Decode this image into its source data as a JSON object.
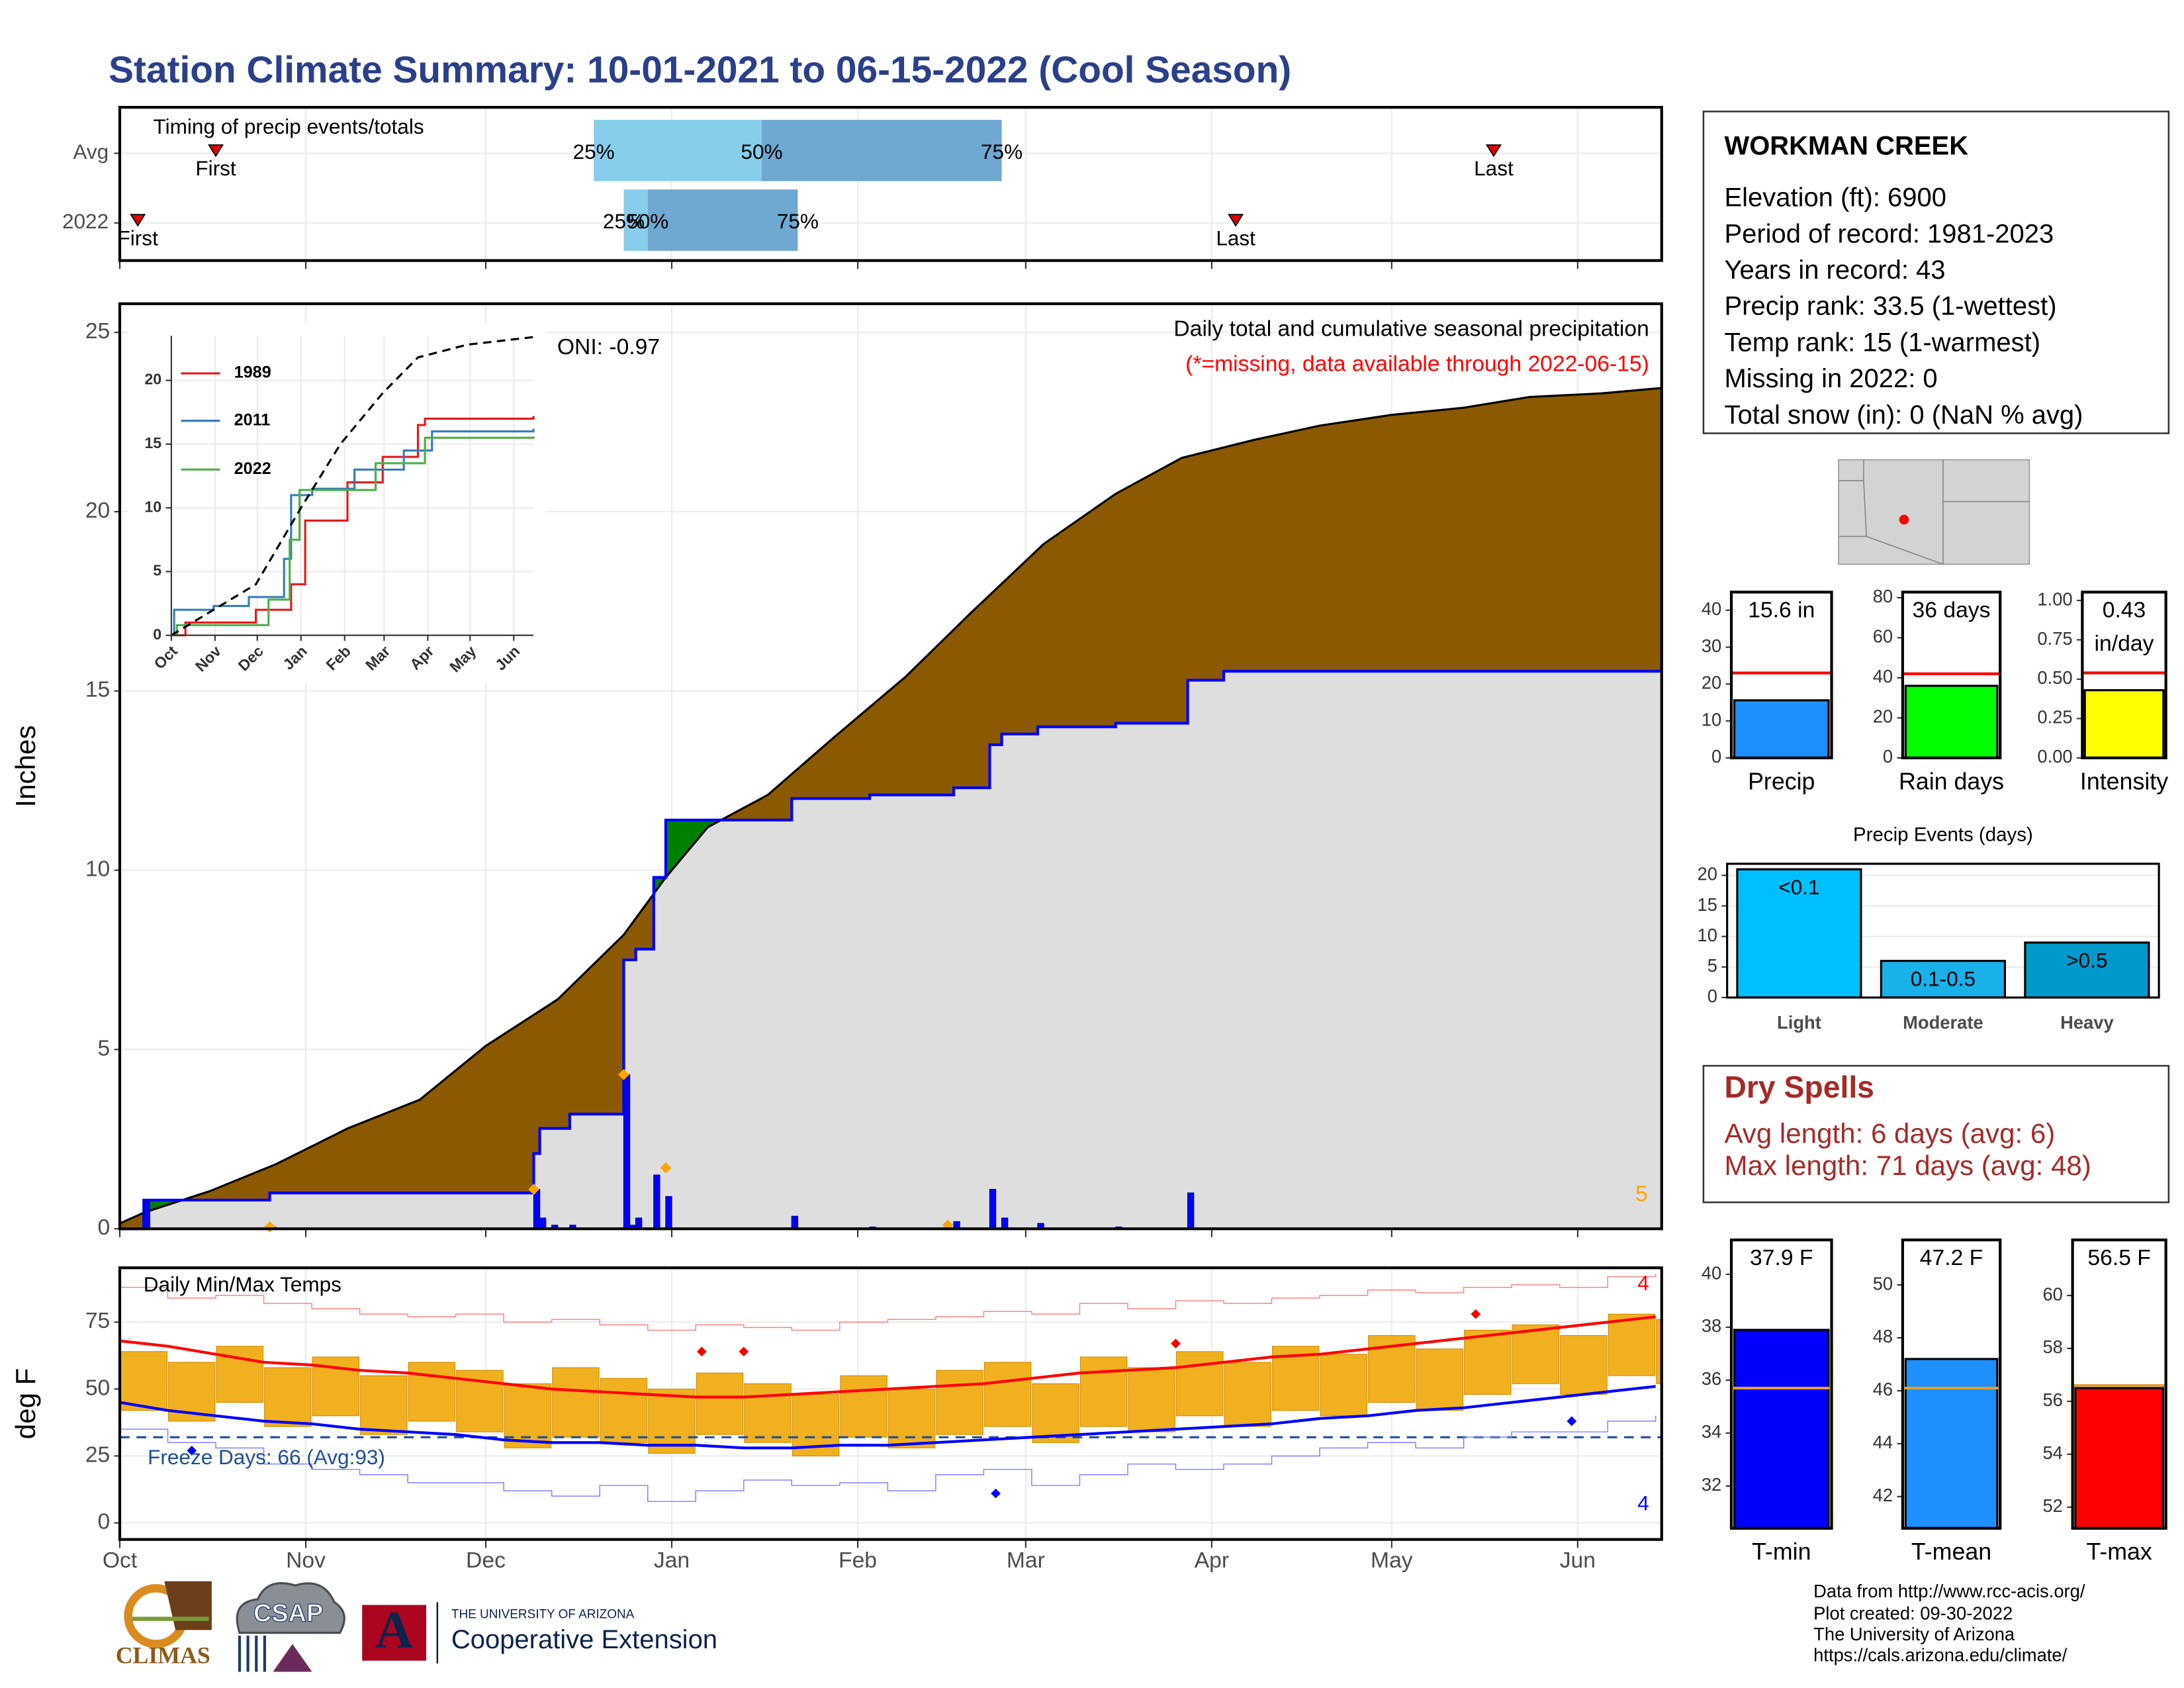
{
  "title": "Station Climate Summary: 10-01-2021 to 06-15-2022 (Cool Season)",
  "station": {
    "name": "WORKMAN CREEK",
    "lines": [
      "Elevation (ft): 6900",
      "Period of record: 1981-2023",
      "Years in record: 43",
      "Precip rank: 33.5 (1-wettest)",
      "Temp rank: 15 (1-warmest)",
      "Missing in 2022: 0",
      "Total snow (in): 0 (NaN % avg)"
    ]
  },
  "dry_spells": {
    "title": "Dry Spells",
    "lines": [
      "Avg length: 6 days (avg: 6)",
      "Max length: 71 days (avg: 48)"
    ]
  },
  "footer": [
    "Data from http://www.rcc-acis.org/",
    "Plot created: 09-30-2022",
    "The University of Arizona",
    "https://cals.arizona.edu/climate/"
  ],
  "logos": {
    "climas": "CLIMAS",
    "csap": "CSAP",
    "ua_mark": "A",
    "ua": "THE UNIVERSITY OF ARIZONA",
    "extension": "Cooperative Extension"
  },
  "chart_data": [
    {
      "type": "timing",
      "title": "Timing of precip events/totals",
      "xlim": [
        0,
        257
      ],
      "xticks": [
        0,
        31,
        61,
        92,
        123,
        151,
        182,
        212,
        243
      ],
      "grid": true,
      "rows": [
        {
          "name": "Avg",
          "first": 16,
          "last": 229,
          "quantiles": [
            79,
            107,
            147
          ]
        },
        {
          "name": "2022",
          "first": 3,
          "last": 186,
          "quantiles": [
            84,
            88,
            113
          ]
        }
      ],
      "quantile_labels": [
        "25%",
        "50%",
        "75%"
      ],
      "first_label": "First",
      "last_label": "Last",
      "colors": [
        "#87ceeb",
        "#6fa8d0"
      ],
      "marker_color": "#e00000"
    },
    {
      "type": "area",
      "y_label": "Inches",
      "annotations": [
        {
          "text": "Daily total and cumulative seasonal precipitation",
          "color": "#000000"
        },
        {
          "text": "(*=missing, data available through 2022-06-15)",
          "color": "#ff0000"
        },
        {
          "text": "ONI: -0.97",
          "color": "#000000"
        },
        {
          "text": "5",
          "color": "#ffa500"
        }
      ],
      "xlim": [
        0,
        257
      ],
      "xticks": [
        0,
        31,
        61,
        92,
        123,
        151,
        182,
        212,
        243
      ],
      "ylim": [
        0,
        25.8
      ],
      "yticks": [
        0,
        5,
        10,
        15,
        20,
        25
      ],
      "grid": true,
      "average": {
        "color": "#8b5a00",
        "x": [
          0,
          4,
          15,
          26,
          38,
          50,
          61,
          73,
          84,
          91,
          98,
          108,
          119,
          131,
          142,
          154,
          166,
          177,
          189,
          200,
          212,
          224,
          235,
          247,
          257
        ],
        "values": [
          0.15,
          0.45,
          1.05,
          1.8,
          2.8,
          3.6,
          5.1,
          6.4,
          8.2,
          9.8,
          11.2,
          12.1,
          13.7,
          15.4,
          17.2,
          19.1,
          20.5,
          21.5,
          22.0,
          22.4,
          22.7,
          22.9,
          23.2,
          23.3,
          23.45
        ]
      },
      "current": {
        "color": "#0000ff",
        "fill": "#dedede",
        "above_color": "#008000",
        "x": [
          0,
          4,
          25,
          69,
          70,
          75,
          84,
          86,
          89,
          91,
          112,
          125,
          139,
          145,
          147,
          153,
          166,
          178,
          184,
          257
        ],
        "values": [
          0,
          0.8,
          1.0,
          2.1,
          2.8,
          3.2,
          7.5,
          7.8,
          9.8,
          11.4,
          12.0,
          12.1,
          12.3,
          13.5,
          13.8,
          14.0,
          14.1,
          15.3,
          15.55,
          15.55
        ]
      },
      "daily": {
        "color": "#0000ff",
        "x": [
          4,
          25,
          69,
          70,
          72,
          75,
          84,
          85,
          86,
          89,
          91,
          112,
          125,
          139,
          145,
          147,
          153,
          166,
          178
        ],
        "values": [
          0.8,
          0.05,
          1.1,
          0.3,
          0.1,
          0.1,
          4.3,
          0.1,
          0.3,
          1.5,
          0.9,
          0.35,
          0.05,
          0.2,
          1.1,
          0.3,
          0.15,
          0.05,
          1.0
        ]
      },
      "markers": {
        "color": "#ffa500",
        "x": [
          25,
          69,
          84,
          91,
          138
        ],
        "values": [
          0.05,
          1.1,
          4.3,
          1.7,
          0.1
        ]
      }
    },
    {
      "type": "line",
      "xlim": [
        0,
        257
      ],
      "xticks": [
        {
          "value": 0,
          "label": "Oct"
        },
        {
          "value": 31,
          "label": "Nov"
        },
        {
          "value": 61,
          "label": "Dec"
        },
        {
          "value": 92,
          "label": "Jan"
        },
        {
          "value": 123,
          "label": "Feb"
        },
        {
          "value": 151,
          "label": "Mar"
        },
        {
          "value": 182,
          "label": "Apr"
        },
        {
          "value": 212,
          "label": "May"
        },
        {
          "value": 243,
          "label": "Jun"
        }
      ],
      "ylim": [
        0,
        23.5
      ],
      "yticks": [
        0,
        5,
        10,
        15,
        20
      ],
      "grid": true,
      "series": [
        {
          "name": "1989",
          "color": "#e41a1c",
          "x": [
            0,
            10,
            60,
            85,
            95,
            125,
            150,
            175,
            180,
            257
          ],
          "values": [
            0,
            1,
            2,
            4,
            9,
            12,
            14,
            16.5,
            17,
            17.2
          ]
        },
        {
          "name": "2011",
          "color": "#377eb8",
          "x": [
            0,
            2,
            30,
            55,
            80,
            85,
            100,
            130,
            165,
            185,
            257
          ],
          "values": [
            0,
            2,
            2.3,
            3,
            6,
            11,
            11.5,
            13,
            14.5,
            16,
            16.2
          ]
        },
        {
          "name": "2022",
          "color": "#4daf4a",
          "x": [
            0,
            4,
            69,
            84,
            91,
            145,
            180,
            257
          ],
          "values": [
            0,
            0.8,
            2.8,
            7.5,
            11.4,
            13.5,
            15.5,
            15.6
          ]
        },
        {
          "color": "#000000",
          "dash": true,
          "x": [
            0,
            30,
            60,
            92,
            120,
            150,
            175,
            210,
            257
          ],
          "values": [
            0,
            2,
            4,
            10,
            15,
            19,
            21.8,
            22.8,
            23.4
          ]
        }
      ]
    },
    {
      "type": "temperature",
      "title": "Daily Min/Max Temps",
      "y_label": "deg F",
      "annotations": [
        {
          "text": "Freeze Days: 66 (Avg:93)",
          "color": "#1f4e99"
        },
        {
          "text": "4",
          "color": "#ff0000"
        },
        {
          "text": "4",
          "color": "#0000ff"
        }
      ],
      "xlim": [
        0,
        257
      ],
      "xticks": [
        {
          "value": 0,
          "label": "Oct"
        },
        {
          "value": 31,
          "label": "Nov"
        },
        {
          "value": 61,
          "label": "Dec"
        },
        {
          "value": 92,
          "label": "Jan"
        },
        {
          "value": 123,
          "label": "Feb"
        },
        {
          "value": 151,
          "label": "Mar"
        },
        {
          "value": 182,
          "label": "Apr"
        },
        {
          "value": 212,
          "label": "May"
        },
        {
          "value": 243,
          "label": "Jun"
        }
      ],
      "ylim": [
        -6.2,
        95.3
      ],
      "yticks": [
        0,
        25,
        50,
        75
      ],
      "grid": true,
      "freeze_line": {
        "value": 32,
        "color": "#1f4e99"
      },
      "x": [
        0,
        8,
        16,
        24,
        32,
        40,
        48,
        56,
        64,
        72,
        80,
        88,
        96,
        104,
        112,
        120,
        128,
        136,
        144,
        152,
        160,
        168,
        176,
        184,
        192,
        200,
        208,
        216,
        224,
        232,
        240,
        248,
        256
      ],
      "range": {
        "color": "#f0b020",
        "high": [
          64,
          60,
          66,
          58,
          62,
          55,
          60,
          57,
          52,
          58,
          54,
          50,
          56,
          52,
          48,
          55,
          50,
          57,
          60,
          52,
          62,
          58,
          64,
          60,
          66,
          63,
          70,
          65,
          72,
          74,
          70,
          78,
          76
        ],
        "low": [
          42,
          38,
          45,
          36,
          40,
          33,
          38,
          34,
          28,
          32,
          30,
          26,
          33,
          30,
          25,
          32,
          28,
          33,
          36,
          30,
          36,
          34,
          40,
          36,
          42,
          40,
          45,
          42,
          48,
          52,
          48,
          55,
          52
        ]
      },
      "series": [
        {
          "color": "#ff0000",
          "width": 2,
          "values": [
            68,
            66,
            63,
            60,
            59,
            57,
            56,
            54,
            52,
            50,
            49,
            48,
            47,
            47,
            48,
            49,
            50,
            51,
            52,
            54,
            56,
            57,
            58,
            60,
            62,
            63,
            65,
            67,
            69,
            71,
            73,
            75,
            77
          ]
        },
        {
          "color": "#0000ff",
          "width": 2,
          "values": [
            45,
            42,
            40,
            38,
            37,
            35,
            34,
            33,
            31,
            30,
            30,
            29,
            29,
            28,
            28,
            29,
            29,
            30,
            31,
            32,
            33,
            34,
            35,
            36,
            37,
            39,
            40,
            42,
            43,
            45,
            47,
            49,
            51
          ]
        },
        {
          "color": "#ff8080",
          "width": 0.7,
          "values": [
            88,
            84,
            85,
            82,
            80,
            78,
            77,
            78,
            75,
            76,
            74,
            72,
            74,
            73,
            72,
            75,
            76,
            77,
            79,
            78,
            82,
            80,
            83,
            82,
            84,
            85,
            87,
            86,
            88,
            89,
            88,
            92,
            93
          ]
        },
        {
          "color": "#8080ff",
          "width": 0.7,
          "values": [
            35,
            30,
            28,
            22,
            20,
            18,
            15,
            15,
            12,
            10,
            14,
            8,
            12,
            16,
            14,
            15,
            12,
            18,
            20,
            14,
            18,
            22,
            20,
            22,
            25,
            28,
            30,
            28,
            32,
            34,
            34,
            38,
            40
          ]
        }
      ],
      "markers": [
        {
          "color": "#ff0000",
          "x": [
            97,
            104,
            176,
            226
          ],
          "values": [
            64,
            64,
            67,
            78
          ]
        },
        {
          "color": "#0000ff",
          "x": [
            12,
            146,
            242
          ],
          "values": [
            27,
            11,
            38
          ]
        }
      ]
    },
    {
      "type": "bar",
      "categories": [
        "Precip"
      ],
      "values": [
        15.6
      ],
      "value_labels": [
        "15.6 in"
      ],
      "color": "#1e90ff",
      "average": {
        "value": 23,
        "color": "#ff0000"
      },
      "ylim": [
        0,
        44.9
      ],
      "yticks": [
        0,
        10,
        20,
        30,
        40
      ]
    },
    {
      "type": "bar",
      "categories": [
        "Rain days"
      ],
      "values": [
        36
      ],
      "value_labels": [
        "36 days"
      ],
      "color": "#00ff00",
      "average": {
        "value": 42,
        "color": "#ff0000"
      },
      "ylim": [
        0,
        82.8
      ],
      "yticks": [
        0,
        20,
        40,
        60,
        80
      ]
    },
    {
      "type": "bar",
      "categories": [
        "Intensity"
      ],
      "values": [
        0.43
      ],
      "value_labels": [
        "0.43 in/day"
      ],
      "color": "#ffff00",
      "average": {
        "value": 0.54,
        "color": "#ff0000"
      },
      "ylim": [
        0,
        1.053
      ],
      "yticks": [
        {
          "value": 0,
          "label": "0.00"
        },
        0.25,
        {
          "value": 0.5,
          "label": "0.50"
        },
        0.75,
        {
          "value": 1,
          "label": "1.00"
        }
      ]
    },
    {
      "type": "bar",
      "title": "Precip Events (days)",
      "categories": [
        "Light",
        "Moderate",
        "Heavy"
      ],
      "values": [
        21,
        6,
        9
      ],
      "value_labels": [
        "<0.1",
        "0.1-0.5",
        ">0.5"
      ],
      "colors": [
        "#00bfff",
        "#1ab0e8",
        "#0099cc"
      ],
      "ylim": [
        0,
        21.9
      ],
      "yticks": [
        0,
        5,
        10,
        15,
        20
      ],
      "grid": true
    },
    {
      "type": "bar",
      "categories": [
        "T-min"
      ],
      "values": [
        37.9
      ],
      "value_labels": [
        "37.9 F"
      ],
      "color": "#0000ff",
      "average": {
        "value": 35.7,
        "color": "#e0a030"
      },
      "ylim": [
        30.4,
        41.3
      ],
      "yticks": [
        32,
        34,
        36,
        38,
        40
      ]
    },
    {
      "type": "bar",
      "categories": [
        "T-mean"
      ],
      "values": [
        47.2
      ],
      "value_labels": [
        "47.2 F"
      ],
      "color": "#1e90ff",
      "average": {
        "value": 46.1,
        "color": "#e0a030"
      },
      "ylim": [
        40.8,
        51.7
      ],
      "yticks": [
        42,
        44,
        46,
        48,
        50
      ]
    },
    {
      "type": "bar",
      "categories": [
        "T-max"
      ],
      "values": [
        56.5
      ],
      "value_labels": [
        "56.5 F"
      ],
      "color": "#ff0000",
      "average": {
        "value": 56.6,
        "color": "#e0a030"
      },
      "ylim": [
        51.2,
        62.1
      ],
      "yticks": [
        52,
        54,
        56,
        58,
        60
      ]
    }
  ]
}
